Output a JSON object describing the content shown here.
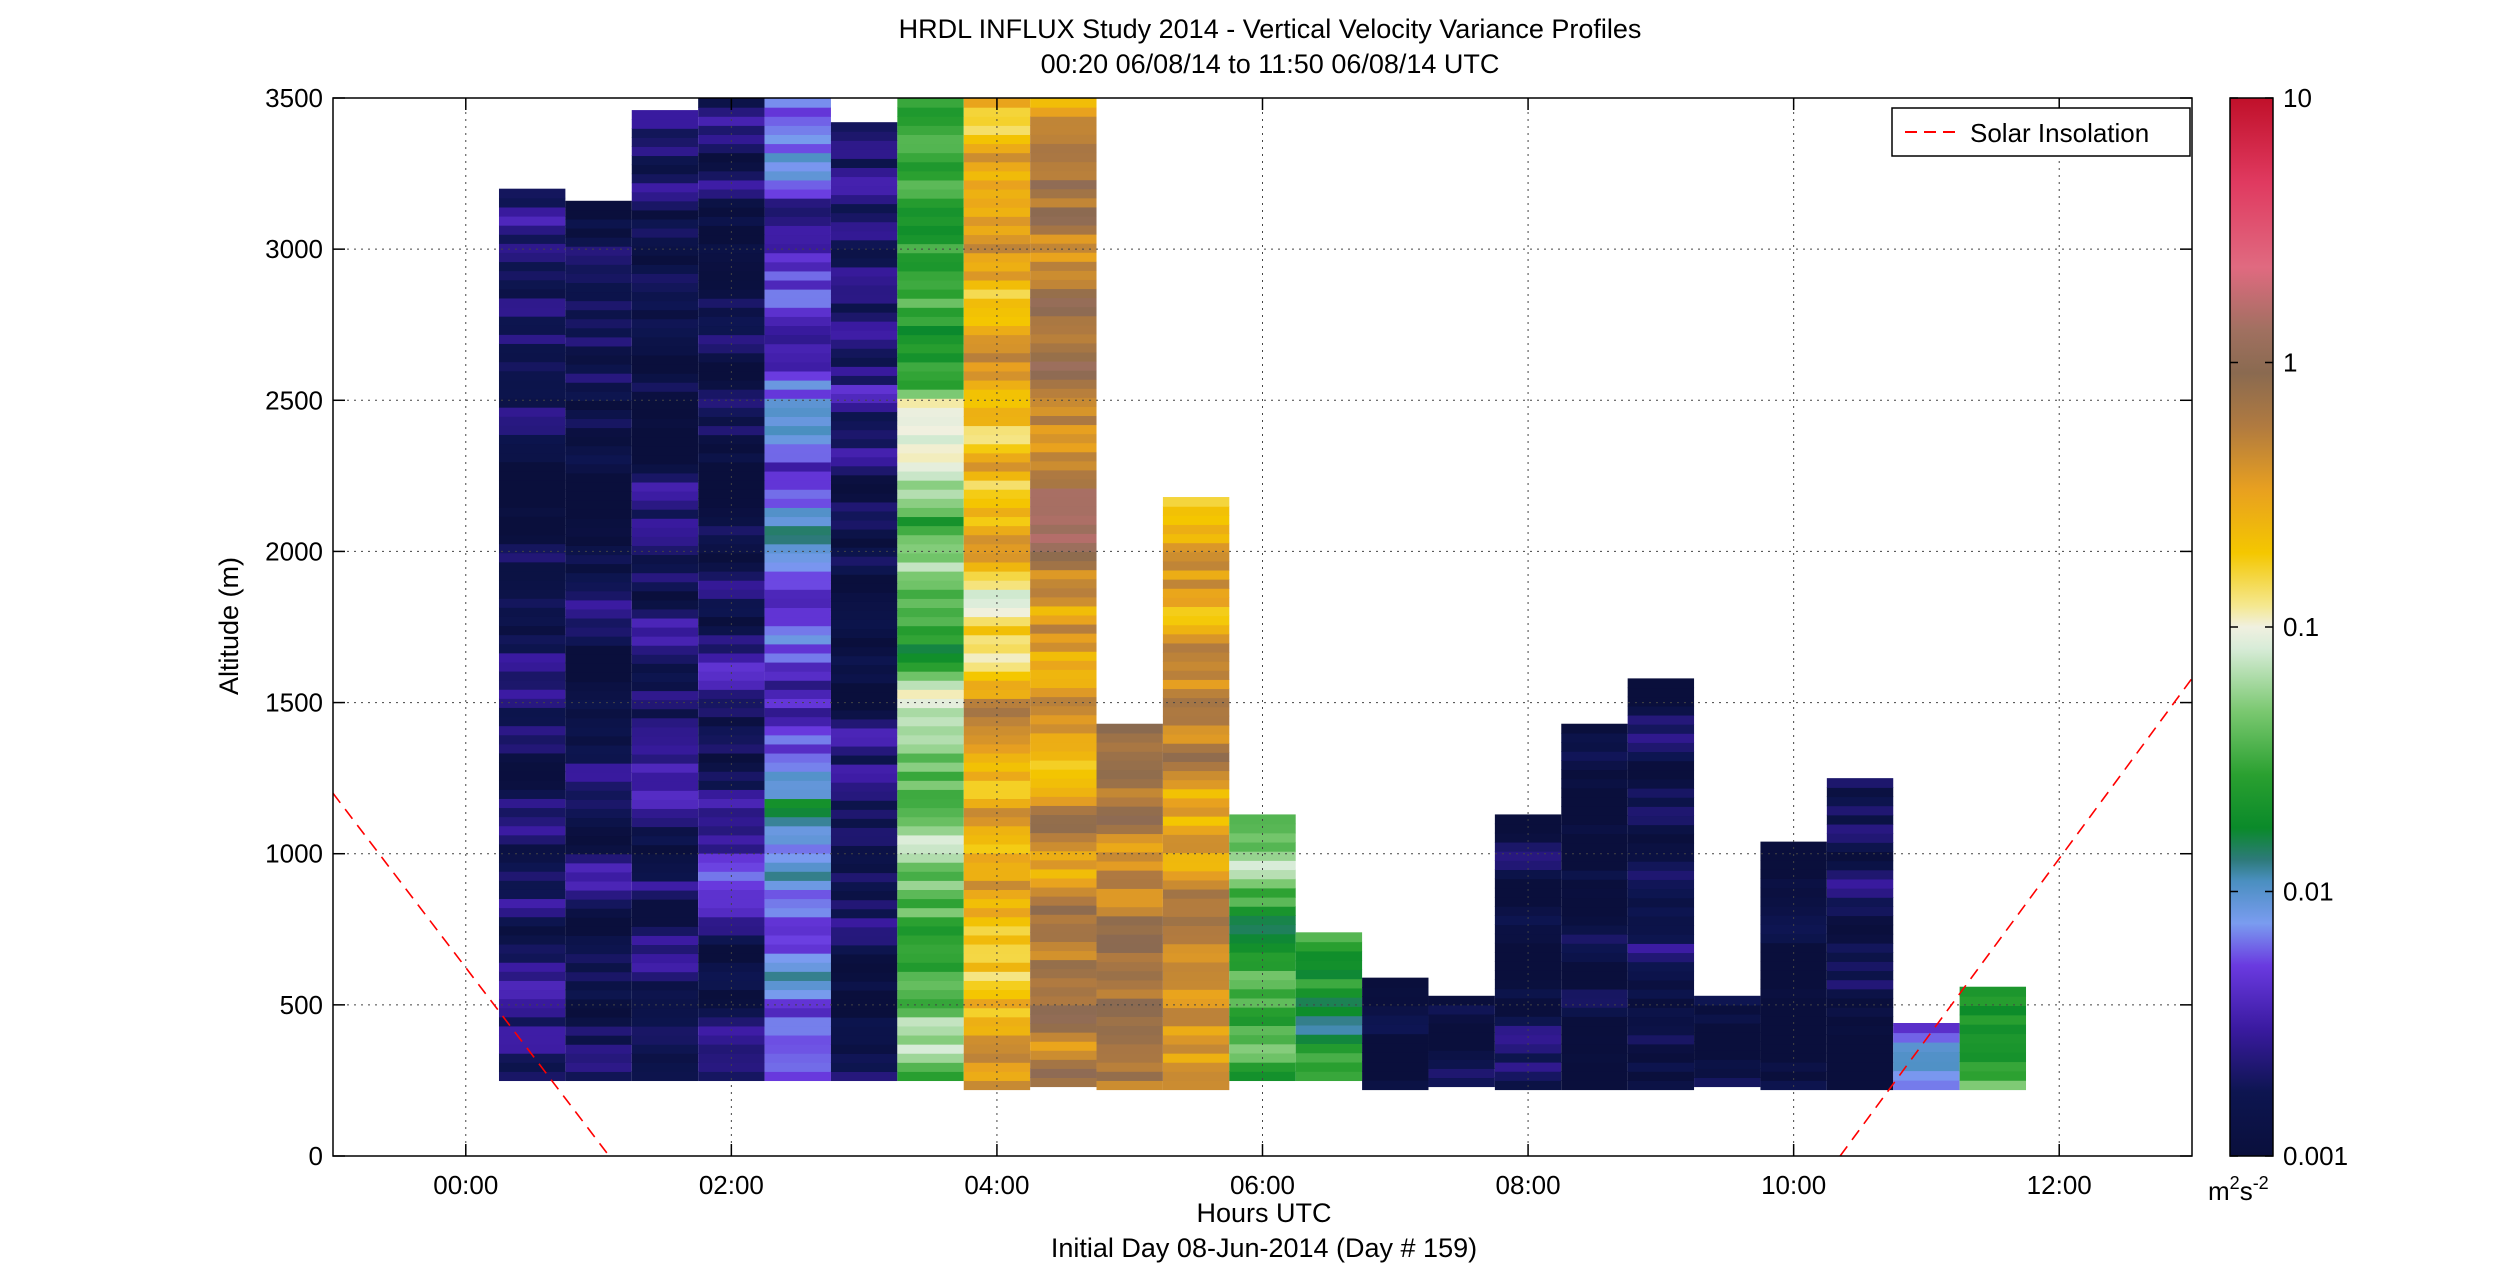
{
  "chart_data": {
    "type": "heatmap",
    "title": "HRDL INFLUX Study 2014 - Vertical Velocity Variance Profiles",
    "subtitle": "00:20 06/08/14 to 11:50 06/08/14  UTC",
    "xlabel": "Hours UTC",
    "xlabel2": "Initial Day 08-Jun-2014 (Day # 159)",
    "ylabel": "Altitude (m)",
    "xlim": [
      -1.0,
      13.0
    ],
    "ylim": [
      0,
      3500
    ],
    "x_ticks": [
      0,
      2,
      4,
      6,
      8,
      10,
      12
    ],
    "x_tick_labels": [
      "00:00",
      "02:00",
      "04:00",
      "06:00",
      "08:00",
      "10:00",
      "12:00"
    ],
    "y_ticks": [
      0,
      500,
      1000,
      1500,
      2000,
      2500,
      3000,
      3500
    ],
    "y_tick_labels": [
      "0",
      "500",
      "1000",
      "1500",
      "2000",
      "2500",
      "3000",
      "3500"
    ],
    "grid": true,
    "legend": {
      "position": "top-right",
      "entries": [
        {
          "label": "Solar Insolation",
          "color": "#ff0000",
          "style": "dashed"
        }
      ]
    },
    "colorbar": {
      "scale": "log",
      "range": [
        0.001,
        10
      ],
      "ticks": [
        0.001,
        0.01,
        0.1,
        1,
        10
      ],
      "tick_labels": [
        "0.001",
        "0.01",
        "0.1",
        "1",
        "10"
      ],
      "units_base": "m",
      "units_exp1": "2",
      "units_mid": "s",
      "units_exp2": "-2"
    },
    "profiles": [
      {
        "time": 0.5,
        "top": 3200,
        "bottom": 250,
        "seed": 0.0017
      },
      {
        "time": 1.0,
        "top": 3160,
        "bottom": 250,
        "seed": 0.0015
      },
      {
        "time": 1.5,
        "top": 3460,
        "bottom": 250,
        "seed": 0.0016
      },
      {
        "time": 2.0,
        "top": 3500,
        "bottom": 250,
        "seed": 0.002
      },
      {
        "time": 2.5,
        "top": 3500,
        "bottom": 250,
        "seed": 0.006
      },
      {
        "time": 3.0,
        "top": 3420,
        "bottom": 250,
        "seed": 0.0015
      },
      {
        "time": 3.5,
        "top": 3500,
        "bottom": 250,
        "seed": 0.04
      },
      {
        "time": 4.0,
        "top": 3500,
        "bottom": 220,
        "seed": 0.3
      },
      {
        "time": 4.5,
        "top": 3500,
        "bottom": 230,
        "seed": 0.5
      },
      {
        "time": 5.0,
        "top": 1430,
        "bottom": 220,
        "seed": 0.6
      },
      {
        "time": 5.5,
        "top": 2180,
        "bottom": 220,
        "seed": 0.4
      },
      {
        "time": 6.0,
        "top": 1130,
        "bottom": 250,
        "seed": 0.03
      },
      {
        "time": 6.5,
        "top": 740,
        "bottom": 250,
        "seed": 0.02
      },
      {
        "time": 7.0,
        "top": 590,
        "bottom": 220,
        "seed": 0.0012
      },
      {
        "time": 7.5,
        "top": 530,
        "bottom": 230,
        "seed": 0.0011
      },
      {
        "time": 8.0,
        "top": 1130,
        "bottom": 220,
        "seed": 0.0012
      },
      {
        "time": 8.5,
        "top": 1430,
        "bottom": 220,
        "seed": 0.0012
      },
      {
        "time": 9.0,
        "top": 1580,
        "bottom": 220,
        "seed": 0.0013
      },
      {
        "time": 9.5,
        "top": 530,
        "bottom": 230,
        "seed": 0.0014
      },
      {
        "time": 10.0,
        "top": 1040,
        "bottom": 220,
        "seed": 0.0012
      },
      {
        "time": 10.5,
        "top": 1250,
        "bottom": 220,
        "seed": 0.0013
      },
      {
        "time": 11.0,
        "top": 440,
        "bottom": 220,
        "seed": 0.004
      },
      {
        "time": 11.5,
        "top": 560,
        "bottom": 220,
        "seed": 0.03
      }
    ],
    "solar_insolation": {
      "morning": {
        "x": [
          -1.0,
          1.08
        ],
        "y": [
          1200,
          0
        ]
      },
      "evening": {
        "x": [
          10.35,
          13.0
        ],
        "y": [
          0,
          1580
        ]
      }
    }
  }
}
